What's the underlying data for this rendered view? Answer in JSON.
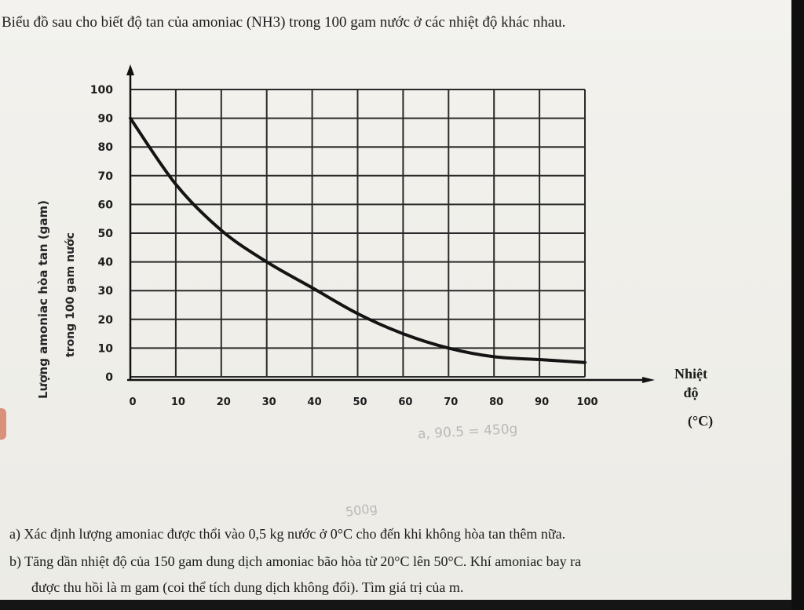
{
  "header": {
    "intro": "Biểu đồ sau cho biết độ tan của amoniac (NH3) trong 100 gam nước ở các nhiệt độ khác nhau."
  },
  "chart_data": {
    "type": "line",
    "title": "",
    "ylabel": "Lượng amoniac hòa tan (gam)",
    "ylabel2": "trong 100 gam nước",
    "xlabel_line1": "Nhiệt",
    "xlabel_line2": "độ",
    "xlabel_unit": "(°C)",
    "xlim": [
      0,
      100
    ],
    "ylim": [
      0,
      100
    ],
    "x_ticks": [
      "0",
      "10",
      "20",
      "30",
      "40",
      "50",
      "60",
      "70",
      "80",
      "90",
      "100"
    ],
    "y_ticks": [
      "0",
      "10",
      "20",
      "30",
      "40",
      "50",
      "60",
      "70",
      "80",
      "90",
      "100"
    ],
    "grid": true,
    "series": [
      {
        "x": [
          0,
          10,
          20,
          30,
          40,
          50,
          60,
          70,
          80,
          90,
          100
        ],
        "values": [
          90,
          67,
          51,
          40,
          31,
          22,
          15,
          10,
          7,
          6,
          5
        ]
      }
    ]
  },
  "handwritten": {
    "note1": "a, 90.5 = 450g",
    "note2": "500g"
  },
  "questions": {
    "a": "a) Xác định lượng amoniac được thổi vào 0,5 kg nước ở 0°C cho đến khi không hòa tan thêm nữa.",
    "b": "b) Tăng dần nhiệt độ của 150 gam dung dịch amoniac bão hòa từ 20°C lên 50°C. Khí amoniac bay ra",
    "c": "được thu hồi là m gam (coi thể tích dung dịch không đổi). Tìm giá trị của m."
  }
}
